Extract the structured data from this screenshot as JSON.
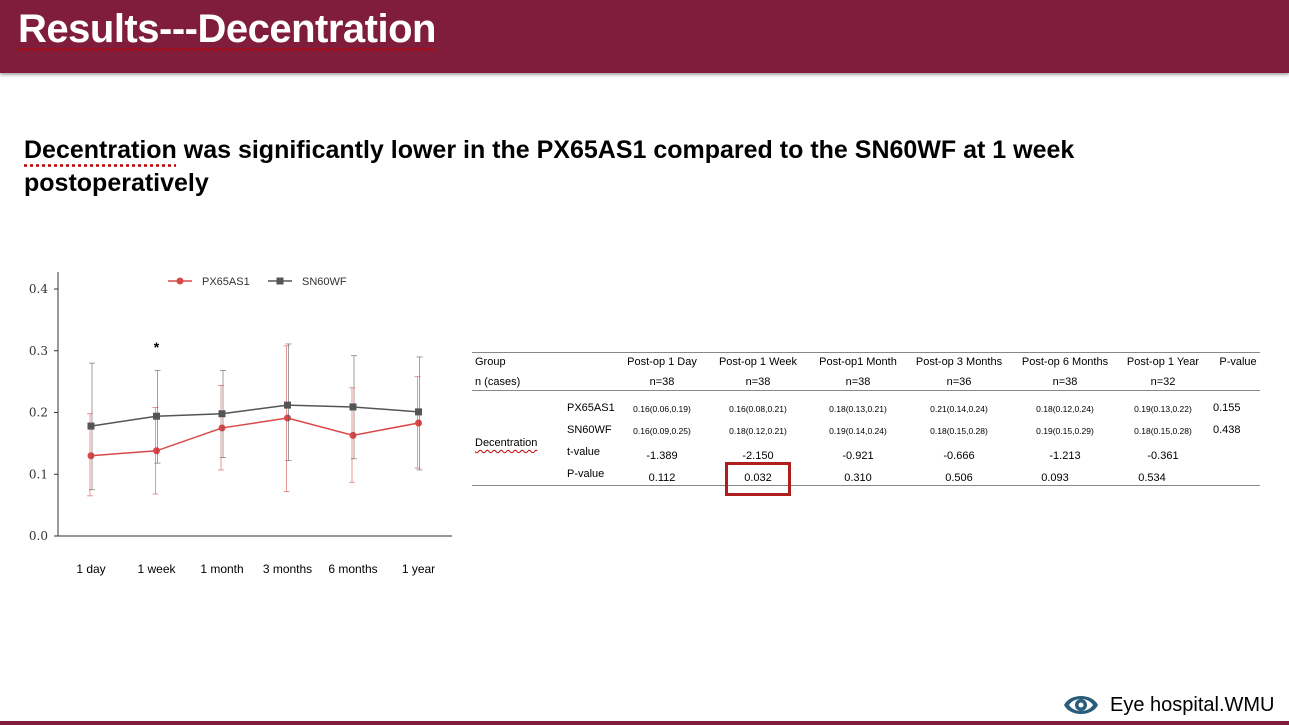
{
  "header": {
    "title": "Results---Decentration"
  },
  "subtitle": {
    "word_marked": "Decentration",
    "rest": " was significantly lower in the PX65AS1 compared to the SN60WF at 1 week postoperatively"
  },
  "colors": {
    "brand": "#7f1d3a",
    "px65": "#d94848",
    "sn60": "#555555",
    "highlight": "#b01f1f"
  },
  "chart_data": {
    "type": "line",
    "categories": [
      "1 day",
      "1 week",
      "1 month",
      "3 months",
      "6 months",
      "1 year"
    ],
    "ylim": [
      0,
      0.4
    ],
    "yticks": [
      "0.0",
      "0.1",
      "0.2",
      "0.3",
      "0.4"
    ],
    "annotation": "*",
    "series": [
      {
        "name": "PX65AS1",
        "color": "#d94848",
        "values": [
          0.13,
          0.138,
          0.175,
          0.191,
          0.163,
          0.183
        ],
        "err_low": [
          0.065,
          0.068,
          0.107,
          0.072,
          0.087,
          0.11
        ],
        "err_high": [
          0.198,
          0.208,
          0.244,
          0.308,
          0.24,
          0.258
        ]
      },
      {
        "name": "SN60WF",
        "color": "#555555",
        "values": [
          0.178,
          0.194,
          0.198,
          0.212,
          0.209,
          0.201
        ],
        "err_low": [
          0.075,
          0.118,
          0.127,
          0.122,
          0.125,
          0.107
        ],
        "err_high": [
          0.28,
          0.268,
          0.268,
          0.311,
          0.292,
          0.29
        ]
      }
    ]
  },
  "table": {
    "headers": [
      "Group",
      "Post-op 1 Day",
      "Post-op 1 Week",
      "Post-op1 Month",
      "Post-op 3 Months",
      "Post-op 6 Months",
      "Post-op 1 Year",
      "P-value"
    ],
    "n_label": "n (cases)",
    "n_values": [
      "n=38",
      "n=38",
      "n=38",
      "n=36",
      "n=38",
      "n=32"
    ],
    "group_label": "Decentration",
    "rows": [
      {
        "label": "PX65AS1",
        "values": [
          "0.16(0.06,0.19)",
          "0.16(0.08,0.21)",
          "0.18(0.13,0.21)",
          "0.21(0.14,0.24)",
          "0.18(0.12,0.24)",
          "0.19(0.13,0.22)"
        ],
        "p": "0.155"
      },
      {
        "label": "SN60WF",
        "values": [
          "0.16(0.09,0.25)",
          "0.18(0.12,0.21)",
          "0.19(0.14,0.24)",
          "0.18(0.15,0.28)",
          "0.19(0.15,0.29)",
          "0.18(0.15,0.28)"
        ],
        "p": "0.438"
      },
      {
        "label": "t-value",
        "values": [
          "-1.389",
          "-2.150",
          "-0.921",
          "-0.666",
          "-1.213",
          "-0.361"
        ],
        "p": ""
      },
      {
        "label": "P-value",
        "values": [
          "0.112",
          "0.032",
          "0.310",
          "0.506",
          "0.093",
          "0.534"
        ],
        "p": ""
      }
    ]
  },
  "footer": {
    "logo_icon": "eye-logo-icon",
    "text": "Eye hospital.WMU"
  }
}
